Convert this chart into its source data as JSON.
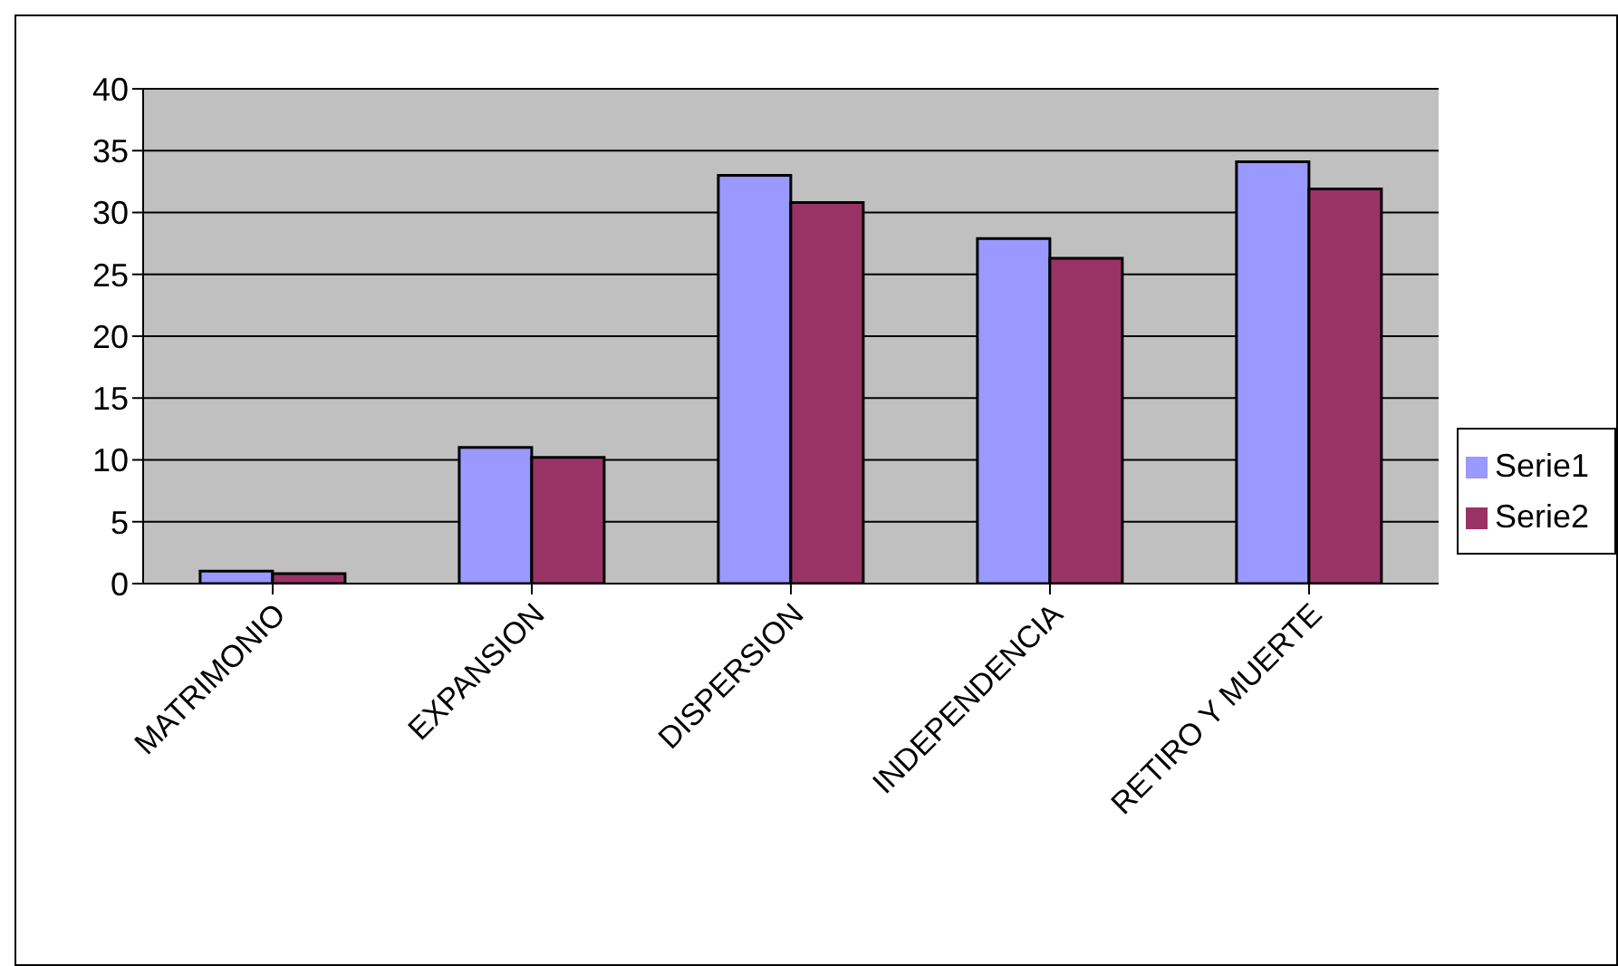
{
  "chart_data": {
    "type": "bar",
    "categories": [
      "MATRIMONIO",
      "EXPANSION",
      "DISPERSION",
      "INDEPENDENCIA",
      "RETIRO Y MUERTE"
    ],
    "series": [
      {
        "name": "Serie1",
        "color": "#9999ff",
        "values": [
          1,
          11,
          33,
          27.9,
          34.1
        ]
      },
      {
        "name": "Serie2",
        "color": "#993366",
        "values": [
          0.8,
          10.2,
          30.8,
          26.3,
          31.9
        ]
      }
    ],
    "ylim": [
      0,
      40
    ],
    "yticks": [
      0,
      5,
      10,
      15,
      20,
      25,
      30,
      35,
      40
    ],
    "grid": "y",
    "legend": "right"
  }
}
